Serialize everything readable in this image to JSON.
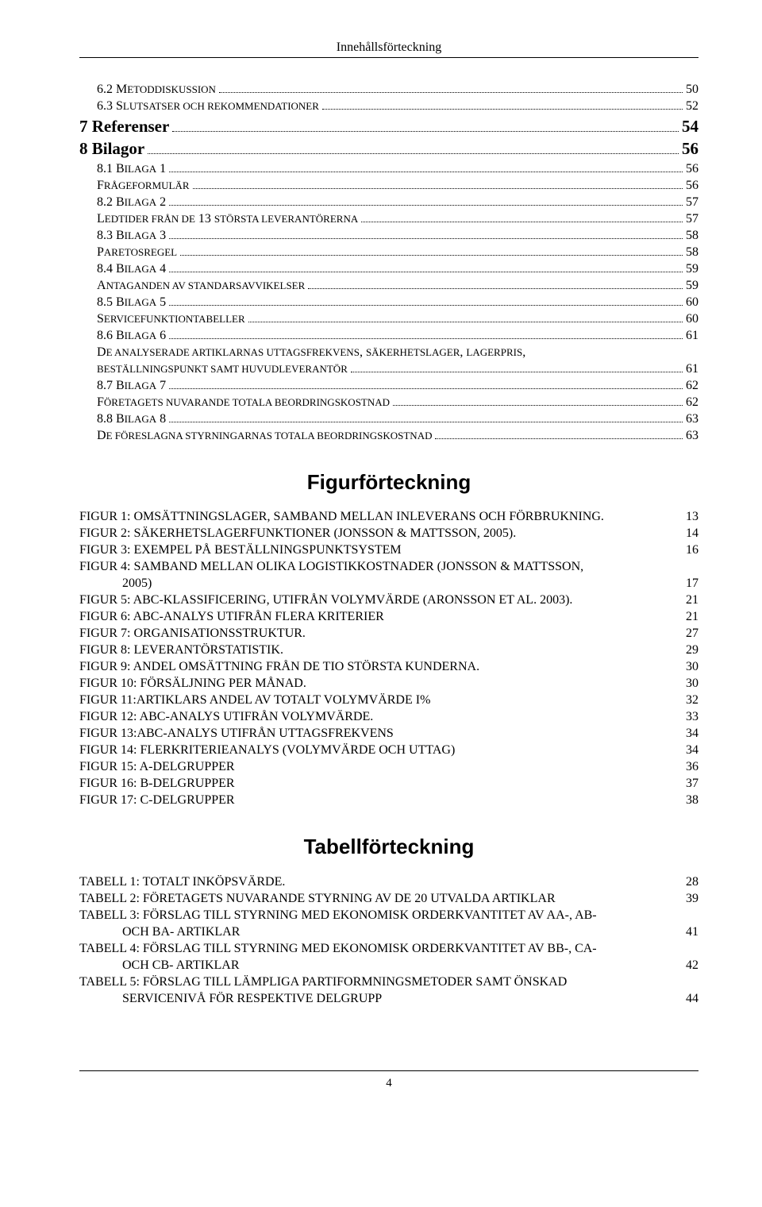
{
  "header": "Innehållsförteckning",
  "toc": [
    {
      "indent": "0",
      "cls": "",
      "label": "6.2   M",
      "caps": "ETODDISKUSSION",
      "rest": "",
      "page": "50"
    },
    {
      "indent": "0",
      "cls": "",
      "label": "6.3   S",
      "caps": "LUTSATSER OCH REKOMMENDATIONER",
      "rest": "",
      "page": "52"
    },
    {
      "indent": "1",
      "cls": "lvl7",
      "label": "7   Referenser",
      "caps": "",
      "rest": "",
      "page": "54"
    },
    {
      "indent": "1",
      "cls": "lvl8",
      "label": "8   Bilagor",
      "caps": "",
      "rest": "",
      "page": "56"
    },
    {
      "indent": "0",
      "cls": "",
      "label": "8.1   B",
      "caps": "ILAGA",
      "rest": " 1",
      "page": "56"
    },
    {
      "indent": "0",
      "cls": "",
      "label": "F",
      "caps": "RÅGEFORMULÄR",
      "rest": "",
      "page": "56"
    },
    {
      "indent": "0",
      "cls": "",
      "label": "8.2   B",
      "caps": "ILAGA",
      "rest": " 2",
      "page": "57"
    },
    {
      "indent": "0",
      "cls": "",
      "label": "L",
      "caps": "EDTIDER FRÅN DE",
      "rest": " 13 ",
      "caps2": "STÖRSTA LEVERANTÖRERNA",
      "page": "57"
    },
    {
      "indent": "0",
      "cls": "",
      "label": "8.3   B",
      "caps": "ILAGA",
      "rest": " 3",
      "page": "58"
    },
    {
      "indent": "0",
      "cls": "",
      "label": "P",
      "caps": "ARETOSREGEL",
      "rest": "",
      "page": "58"
    },
    {
      "indent": "0",
      "cls": "",
      "label": "8.4   B",
      "caps": "ILAGA",
      "rest": " 4",
      "page": "59"
    },
    {
      "indent": "0",
      "cls": "",
      "label": "A",
      "caps": "NTAGANDEN AV STANDARSAVVIKELSER",
      "rest": "",
      "page": "59"
    },
    {
      "indent": "0",
      "cls": "",
      "label": "8.5   B",
      "caps": "ILAGA",
      "rest": " 5",
      "page": "60"
    },
    {
      "indent": "0",
      "cls": "",
      "label": "S",
      "caps": "ERVICEFUNKTIONTABELLER",
      "rest": "",
      "page": "60"
    },
    {
      "indent": "0",
      "cls": "",
      "label": "8.6   B",
      "caps": "ILAGA",
      "rest": " 6",
      "page": "61"
    },
    {
      "indent": "0",
      "cls": "",
      "label": "D",
      "caps": "E ANALYSERADE ARTIKLARNAS  UTTAGSFREKVENS",
      "rest": ", ",
      "caps2": "SÄKERHETSLAGER",
      "rest2": ", ",
      "caps3": "LAGERPRIS",
      "rest3": ",",
      "nopagedots": true
    },
    {
      "indent": "0",
      "cls": "",
      "label": "",
      "caps": "BESTÄLLNINGSPUNKT SAMT HUVUDLEVERANTÖR",
      "rest": "",
      "page": "61"
    },
    {
      "indent": "0",
      "cls": "",
      "label": "8.7   B",
      "caps": "ILAGA",
      "rest": " 7",
      "page": "62"
    },
    {
      "indent": "0",
      "cls": "",
      "label": "F",
      "caps": "ÖRETAGETS NUVARANDE TOTALA BEORDRINGSKOSTNAD",
      "rest": "",
      "page": "62"
    },
    {
      "indent": "0",
      "cls": "",
      "label": "8.8   B",
      "caps": "ILAGA",
      "rest": " 8",
      "page": "63"
    },
    {
      "indent": "0",
      "cls": "",
      "label": "D",
      "caps": "E FÖRESLAGNA STYRNINGARNAS TOTALA BEORDRINGSKOSTNAD",
      "rest": "",
      "page": "63"
    }
  ],
  "figHeading": "Figurförteckning",
  "figures": [
    {
      "label": "FIGUR 1: OMSÄTTNINGSLAGER, SAMBAND MELLAN INLEVERANS OCH FÖRBRUKNING.",
      "page": "13"
    },
    {
      "label": "FIGUR 2: SÄKERHETSLAGERFUNKTIONER (JONSSON & MATTSSON, 2005).",
      "page": "14"
    },
    {
      "label": "FIGUR 3: EXEMPEL PÅ BESTÄLLNINGSPUNKTSYSTEM",
      "page": "16"
    },
    {
      "label": "FIGUR 4: SAMBAND MELLAN OLIKA LOGISTIKKOSTNADER (JONSSON & MATTSSON,",
      "page": ""
    },
    {
      "cont": true,
      "label": "2005)",
      "page": "17"
    },
    {
      "label": "FIGUR 5: ABC-KLASSIFICERING, UTIFRÅN VOLYMVÄRDE (ARONSSON ET AL. 2003).",
      "page": "21"
    },
    {
      "label": "FIGUR 6: ABC-ANALYS UTIFRÅN FLERA KRITERIER",
      "page": "21"
    },
    {
      "label": "FIGUR 7: ORGANISATIONSSTRUKTUR.",
      "page": "27"
    },
    {
      "label": "FIGUR 8: LEVERANTÖRSTATISTIK.",
      "page": "29"
    },
    {
      "label": "FIGUR 9: ANDEL OMSÄTTNING FRÅN DE TIO STÖRSTA KUNDERNA.",
      "page": "30"
    },
    {
      "label": "FIGUR 10: FÖRSÄLJNING PER MÅNAD.",
      "page": "30"
    },
    {
      "label": "FIGUR 11:ARTIKLARS ANDEL AV TOTALT VOLYMVÄRDE I%",
      "page": "32"
    },
    {
      "label": "FIGUR 12: ABC-ANALYS UTIFRÅN VOLYMVÄRDE.",
      "page": "33"
    },
    {
      "label": "FIGUR 13:ABC-ANALYS UTIFRÅN UTTAGSFREKVENS",
      "page": "34"
    },
    {
      "label": "FIGUR 14: FLERKRITERIEANALYS (VOLYMVÄRDE OCH UTTAG)",
      "page": "34"
    },
    {
      "label": "FIGUR 15: A-DELGRUPPER",
      "page": "36"
    },
    {
      "label": "FIGUR 16: B-DELGRUPPER",
      "page": "37"
    },
    {
      "label": "FIGUR 17: C-DELGRUPPER",
      "page": "38"
    }
  ],
  "tabHeading": "Tabellförteckning",
  "tables": [
    {
      "label": "TABELL 1: TOTALT INKÖPSVÄRDE.",
      "page": "28"
    },
    {
      "label": "TABELL 2: FÖRETAGETS NUVARANDE STYRNING AV DE 20 UTVALDA ARTIKLAR",
      "page": "39"
    },
    {
      "label": "TABELL 3: FÖRSLAG TILL STYRNING MED EKONOMISK ORDERKVANTITET AV AA-, AB-",
      "page": ""
    },
    {
      "cont": true,
      "label": "OCH BA- ARTIKLAR",
      "page": "41"
    },
    {
      "label": "TABELL 4: FÖRSLAG TILL STYRNING MED EKONOMISK ORDERKVANTITET AV BB-, CA-",
      "page": ""
    },
    {
      "cont": true,
      "label": "OCH CB- ARTIKLAR",
      "page": "42"
    },
    {
      "label": "TABELL 5: FÖRSLAG TILL LÄMPLIGA PARTIFORMNINGSMETODER SAMT ÖNSKAD",
      "page": ""
    },
    {
      "cont": true,
      "label": "SERVICENIVÅ FÖR RESPEKTIVE DELGRUPP",
      "page": "44"
    }
  ],
  "footerPage": "4"
}
